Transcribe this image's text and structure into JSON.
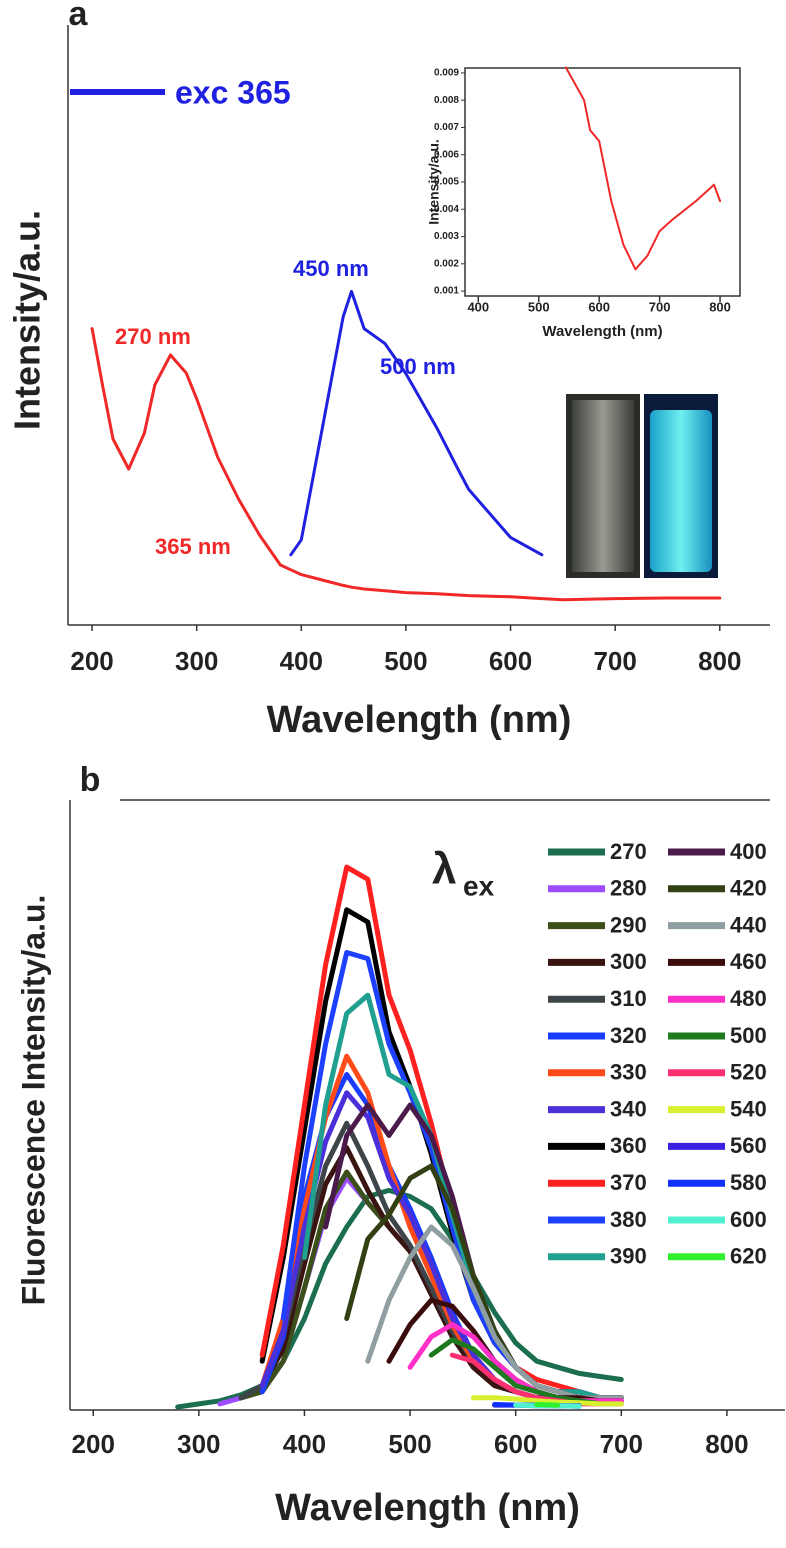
{
  "chart_data": [
    {
      "type": "line",
      "panel_label": "a",
      "xlabel": "Wavelength (nm)",
      "ylabel": "Intensity/a.u.",
      "xlim": [
        177,
        848
      ],
      "ylim": [
        0,
        100
      ],
      "xticks": [
        200,
        300,
        400,
        500,
        600,
        700,
        800
      ],
      "x": [
        200,
        210,
        220,
        235,
        250,
        260,
        275,
        290,
        300,
        320,
        340,
        350,
        360,
        380,
        390,
        400,
        420,
        440,
        448,
        460,
        480,
        500,
        530,
        550,
        560,
        600,
        630,
        650,
        700,
        750,
        800
      ],
      "series": [
        {
          "color": "#f02828",
          "values": [
            49.4,
            40,
            31,
            26,
            32,
            40,
            45,
            42,
            37.7,
            28,
            21,
            18,
            15,
            10,
            9.2,
            8.4,
            7.5,
            6.6,
            6.3,
            6.0,
            5.7,
            5.4,
            5.2,
            5.0,
            4.9,
            4.7,
            4.4,
            4.2,
            4.4,
            4.5,
            4.5
          ]
        },
        {
          "name": "exc 365",
          "color": "#2020e0",
          "values": [
            null,
            null,
            null,
            null,
            null,
            null,
            null,
            null,
            null,
            null,
            null,
            null,
            null,
            null,
            11.7,
            14.2,
            32.7,
            51.4,
            55.6,
            49.4,
            46.9,
            41.9,
            32.7,
            25.9,
            22.6,
            14.6,
            11.7,
            null,
            null,
            null,
            null
          ]
        }
      ],
      "annotations": [
        {
          "text": "270 nm",
          "color": "#f02828"
        },
        {
          "text": "450 nm",
          "color": "#2020e0"
        },
        {
          "text": "500 nm",
          "color": "#2020e0"
        },
        {
          "text": "365 nm",
          "color": "#f02828"
        }
      ]
    },
    {
      "type": "line",
      "xlabel": "Wavelength (nm)",
      "ylabel": "Intensity/a.u.",
      "xlim": [
        378,
        833
      ],
      "ylim": [
        0.00082,
        0.00918
      ],
      "xticks": [
        400,
        500,
        600,
        700,
        800
      ],
      "yticks": [
        0.001,
        0.002,
        0.003,
        0.004,
        0.005,
        0.006,
        0.007,
        0.008,
        0.009
      ],
      "x": [
        545,
        575,
        585,
        600,
        620,
        640,
        660,
        680,
        700,
        720,
        760,
        790,
        800
      ],
      "series": [
        {
          "color": "#f02828",
          "values": [
            0.0092,
            0.008,
            0.0069,
            0.0065,
            0.0043,
            0.0027,
            0.0018,
            0.0023,
            0.0032,
            0.0036,
            0.0043,
            0.0049,
            0.0043
          ]
        }
      ]
    },
    {
      "type": "line",
      "panel_label": "b",
      "xlabel": "Wavelength (nm)",
      "ylabel": "Fluorescence Intensity/a.u.",
      "legend_symbol": "λ",
      "legend_subscript": "ex",
      "xlim": [
        178,
        855
      ],
      "ylim": [
        0,
        100
      ],
      "xticks": [
        200,
        300,
        400,
        500,
        600,
        700,
        800
      ],
      "x": [
        280,
        300,
        320,
        340,
        360,
        380,
        400,
        420,
        440,
        460,
        480,
        500,
        520,
        540,
        560,
        580,
        600,
        620,
        640,
        660,
        680,
        700
      ],
      "series": [
        {
          "name": "270",
          "color": "#1b6e4e",
          "values": [
            0.5,
            1,
            1.5,
            2.5,
            4,
            8,
            15,
            24,
            30,
            35,
            36,
            35,
            33,
            28,
            22,
            16,
            11,
            8,
            7,
            6,
            5.5,
            5
          ]
        },
        {
          "name": "280",
          "color": "#9b4dff",
          "values": [
            null,
            null,
            1,
            2,
            3,
            8,
            20,
            32,
            38,
            34,
            30,
            26,
            19,
            12,
            7,
            4,
            3,
            2,
            2,
            2,
            2,
            2
          ]
        },
        {
          "name": "290",
          "color": "#3c4f1a",
          "values": [
            null,
            null,
            null,
            2,
            3,
            8,
            20,
            33,
            39,
            34,
            30,
            26,
            19,
            12,
            7,
            4,
            3,
            2,
            2,
            2,
            2,
            2
          ]
        },
        {
          "name": "300",
          "color": "#3a1410",
          "values": [
            null,
            null,
            null,
            2,
            4,
            10,
            24,
            37,
            43,
            36,
            30,
            26,
            19,
            12,
            7,
            4,
            3,
            2,
            2,
            2,
            2,
            2
          ]
        },
        {
          "name": "310",
          "color": "#3e4548",
          "values": [
            null,
            null,
            null,
            2,
            4,
            12,
            27,
            40,
            47,
            40,
            32,
            27,
            20,
            13,
            8,
            5,
            3,
            2,
            2,
            2,
            2,
            2
          ]
        },
        {
          "name": "320",
          "color": "#1a3cff",
          "values": [
            null,
            null,
            null,
            null,
            3,
            12,
            35,
            48,
            55,
            50,
            40,
            33,
            25,
            16,
            9,
            5,
            3,
            2,
            2,
            2,
            2,
            2
          ]
        },
        {
          "name": "330",
          "color": "#ff4a1a",
          "values": [
            null,
            null,
            null,
            null,
            4,
            15,
            33,
            48,
            58,
            52,
            40,
            30,
            22,
            14,
            8,
            5,
            3,
            2,
            2,
            2,
            2,
            2
          ]
        },
        {
          "name": "340",
          "color": "#4b2fd8",
          "values": [
            null,
            null,
            null,
            null,
            4,
            13,
            30,
            44,
            52,
            48,
            38,
            32,
            24,
            15,
            9,
            5,
            3,
            2,
            2,
            2,
            2,
            2
          ]
        },
        {
          "name": "360",
          "color": "#000000",
          "values": [
            null,
            null,
            null,
            null,
            8,
            25,
            46,
            67,
            82,
            80,
            62,
            53,
            42,
            29,
            18,
            11,
            7,
            4,
            3,
            3,
            2,
            2
          ]
        },
        {
          "name": "370",
          "color": "#ff2020",
          "values": [
            null,
            null,
            null,
            null,
            9,
            27,
            50,
            73,
            89,
            87,
            68,
            59,
            47,
            33,
            20,
            12,
            7,
            5,
            4,
            3,
            2,
            2
          ]
        },
        {
          "name": "380",
          "color": "#1e40ff",
          "values": [
            null,
            null,
            null,
            null,
            null,
            15,
            40,
            60,
            75,
            74,
            60,
            52,
            43,
            30,
            18,
            11,
            7,
            4,
            3,
            3,
            2,
            2
          ]
        },
        {
          "name": "390",
          "color": "#20a090",
          "values": [
            null,
            null,
            null,
            null,
            null,
            null,
            25,
            50,
            65,
            68,
            55,
            53,
            45,
            32,
            20,
            12,
            7,
            4,
            3,
            3,
            2,
            2
          ]
        },
        {
          "name": "400",
          "color": "#4a1a4a",
          "values": [
            null,
            null,
            null,
            null,
            null,
            null,
            null,
            30,
            45,
            50,
            45,
            50,
            45,
            35,
            22,
            13,
            7,
            4,
            3,
            2,
            2,
            2
          ]
        },
        {
          "name": "420",
          "color": "#324014",
          "values": [
            null,
            null,
            null,
            null,
            null,
            null,
            null,
            null,
            15,
            28,
            32,
            38,
            40,
            33,
            22,
            13,
            7,
            4,
            3,
            2,
            2,
            2
          ]
        },
        {
          "name": "440",
          "color": "#8f9ea0",
          "values": [
            null,
            null,
            null,
            null,
            null,
            null,
            null,
            null,
            null,
            8,
            18,
            25,
            30,
            27,
            20,
            12,
            7,
            4,
            3,
            2,
            2,
            2
          ]
        },
        {
          "name": "460",
          "color": "#3a0c0c",
          "values": [
            null,
            null,
            null,
            null,
            null,
            null,
            null,
            null,
            null,
            null,
            8,
            14,
            18,
            17,
            13,
            8,
            5,
            3,
            2,
            2,
            1.5,
            1.5
          ]
        },
        {
          "name": "480",
          "color": "#ff30c8",
          "values": [
            null,
            null,
            null,
            null,
            null,
            null,
            null,
            null,
            null,
            null,
            null,
            7,
            12,
            14,
            12,
            8,
            5,
            3,
            2,
            1.5,
            1.5,
            1.5
          ]
        },
        {
          "name": "500",
          "color": "#1e7a1e",
          "values": [
            null,
            null,
            null,
            null,
            null,
            null,
            null,
            null,
            null,
            null,
            null,
            null,
            9,
            11.5,
            10,
            7,
            4,
            3,
            2,
            1.5,
            1,
            1
          ]
        },
        {
          "name": "520",
          "color": "#ff3070",
          "values": [
            null,
            null,
            null,
            null,
            null,
            null,
            null,
            null,
            null,
            null,
            null,
            null,
            null,
            9,
            8,
            5,
            3,
            2,
            1.5,
            1,
            1,
            1
          ]
        },
        {
          "name": "540",
          "color": "#d8f030",
          "values": [
            null,
            null,
            null,
            null,
            null,
            null,
            null,
            null,
            null,
            null,
            null,
            null,
            null,
            null,
            2,
            2,
            1.8,
            1.5,
            1.3,
            1.2,
            1,
            1
          ]
        },
        {
          "name": "560",
          "color": "#3a20e0",
          "values": [
            null,
            null,
            null,
            null,
            null,
            null,
            null,
            null,
            null,
            null,
            null,
            null,
            null,
            null,
            null,
            0.8,
            0.8,
            0.7,
            0.7,
            0.6,
            null,
            null
          ]
        },
        {
          "name": "580",
          "color": "#1030ff",
          "values": [
            null,
            null,
            null,
            null,
            null,
            null,
            null,
            null,
            null,
            null,
            null,
            null,
            null,
            null,
            null,
            0.9,
            0.8,
            0.8,
            0.7,
            0.7,
            null,
            null
          ]
        },
        {
          "name": "600",
          "color": "#50f0d0",
          "values": [
            null,
            null,
            null,
            null,
            null,
            null,
            null,
            null,
            null,
            null,
            null,
            null,
            null,
            null,
            null,
            null,
            0.8,
            0.7,
            0.7,
            0.6,
            null,
            null
          ]
        },
        {
          "name": "620",
          "color": "#30f030",
          "values": [
            null,
            null,
            null,
            null,
            null,
            null,
            null,
            null,
            null,
            null,
            null,
            null,
            null,
            null,
            null,
            null,
            null,
            0.9,
            0.8,
            null,
            null,
            null
          ]
        }
      ]
    }
  ]
}
